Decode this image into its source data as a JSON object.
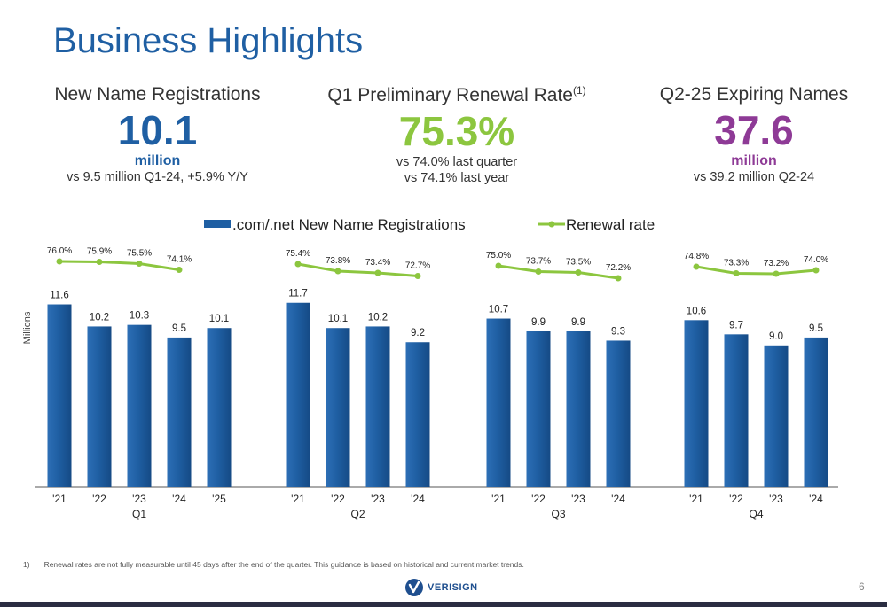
{
  "title": "Business Highlights",
  "kpis": [
    {
      "label": "New Name Registrations",
      "value": "10.1",
      "unit": "million",
      "sub": [
        "vs 9.5 million Q1-24, +5.9% Y/Y"
      ]
    },
    {
      "label": "Q1 Preliminary Renewal Rate",
      "superscript": "(1)",
      "value": "75.3%",
      "sub": [
        "vs 74.0% last quarter",
        "vs 74.1% last year"
      ]
    },
    {
      "label": "Q2-25 Expiring Names",
      "value": "37.6",
      "unit": "million",
      "sub": [
        "vs 39.2 million Q2-24"
      ]
    }
  ],
  "footnote": {
    "number": "1)",
    "text": "Renewal rates are not fully measurable until 45 days after the end of the quarter. This guidance is based on historical and current market trends."
  },
  "logo_text": "VERISIGN",
  "page_number": "6",
  "colors": {
    "bar": "#1f5fa3",
    "line": "#8cc63f",
    "title": "#1f5fa3",
    "kpi_green": "#8cc63f",
    "kpi_purple": "#8e3a96"
  },
  "chart_data": {
    "type": "bar",
    "ylabel": "Millions",
    "legend": {
      "position": "top",
      "items": [
        ".com/.net New Name Registrations",
        "Renewal rate"
      ]
    },
    "series": [
      {
        "name": ".com/.net New Name Registrations",
        "type": "bar"
      },
      {
        "name": "Renewal rate",
        "type": "line"
      }
    ],
    "groups": [
      {
        "label": "Q1",
        "categories": [
          "'21",
          "'22",
          "'23",
          "'24",
          "'25"
        ],
        "registrations": [
          11.6,
          10.2,
          10.3,
          9.5,
          10.1
        ],
        "renewal_rate": [
          76.0,
          75.9,
          75.5,
          74.1,
          null
        ],
        "renewal_labels": [
          "76.0%",
          "75.9%",
          "75.5%",
          "74.1%",
          ""
        ]
      },
      {
        "label": "Q2",
        "categories": [
          "'21",
          "'22",
          "'23",
          "'24"
        ],
        "registrations": [
          11.7,
          10.1,
          10.2,
          9.2
        ],
        "renewal_rate": [
          75.4,
          73.8,
          73.4,
          72.7
        ],
        "renewal_labels": [
          "75.4%",
          "73.8%",
          "73.4%",
          "72.7%"
        ]
      },
      {
        "label": "Q3",
        "categories": [
          "'21",
          "'22",
          "'23",
          "'24"
        ],
        "registrations": [
          10.7,
          9.9,
          9.9,
          9.3
        ],
        "renewal_rate": [
          75.0,
          73.7,
          73.5,
          72.2
        ],
        "renewal_labels": [
          "75.0%",
          "73.7%",
          "73.5%",
          "72.2%"
        ]
      },
      {
        "label": "Q4",
        "categories": [
          "'21",
          "'22",
          "'23",
          "'24"
        ],
        "registrations": [
          10.6,
          9.7,
          9.0,
          9.5
        ],
        "renewal_rate": [
          74.8,
          73.3,
          73.2,
          74.0
        ],
        "renewal_labels": [
          "74.8%",
          "73.3%",
          "73.2%",
          "74.0%"
        ]
      }
    ]
  }
}
